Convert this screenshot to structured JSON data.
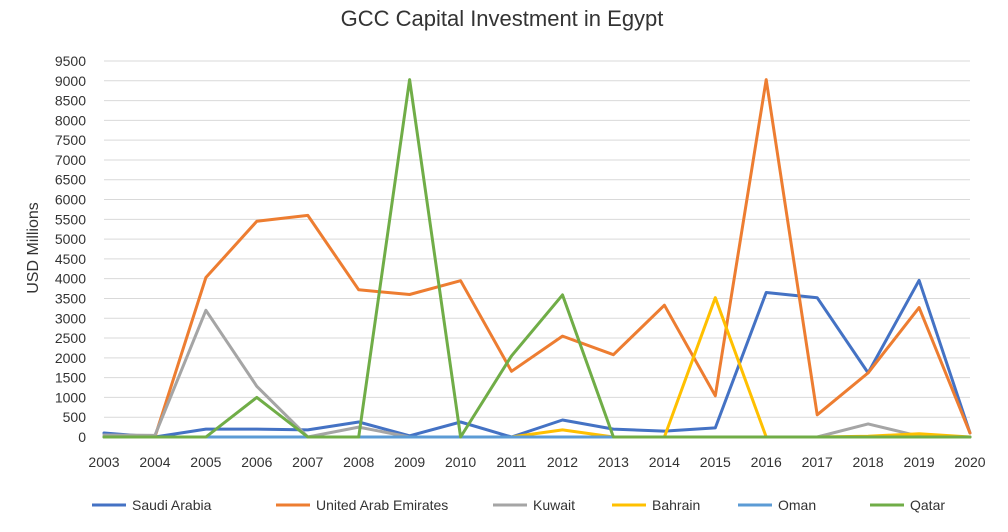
{
  "chart_data": {
    "type": "line",
    "title": "GCC Capital Investment in Egypt",
    "xlabel": "",
    "ylabel": "USD Millions",
    "ylim": [
      0,
      9500
    ],
    "ytick_step": 500,
    "grid": true,
    "legend_position": "bottom",
    "x": [
      "2003",
      "2004",
      "2005",
      "2006",
      "2007",
      "2008",
      "2009",
      "2010",
      "2011",
      "2012",
      "2013",
      "2014",
      "2015",
      "2016",
      "2017",
      "2018",
      "2019",
      "2020"
    ],
    "series": [
      {
        "name": "Saudi Arabia",
        "color": "#4472C4",
        "values": [
          100,
          0,
          200,
          200,
          180,
          380,
          30,
          380,
          0,
          430,
          200,
          150,
          230,
          3650,
          3520,
          1620,
          3960,
          100
        ]
      },
      {
        "name": "United Arab Emirates",
        "color": "#ED7D31",
        "values": [
          0,
          0,
          4030,
          5450,
          5600,
          3720,
          3600,
          3950,
          1660,
          2550,
          2080,
          3330,
          1040,
          9030,
          560,
          1620,
          3270,
          100
        ]
      },
      {
        "name": "Kuwait",
        "color": "#A5A5A5",
        "values": [
          50,
          40,
          3200,
          1280,
          0,
          250,
          0,
          0,
          0,
          0,
          0,
          0,
          0,
          0,
          0,
          330,
          20,
          0
        ]
      },
      {
        "name": "Bahrain",
        "color": "#FFC000",
        "values": [
          0,
          0,
          0,
          0,
          0,
          0,
          0,
          0,
          0,
          180,
          0,
          0,
          3520,
          0,
          0,
          20,
          80,
          0
        ]
      },
      {
        "name": "Oman",
        "color": "#5B9BD5",
        "values": [
          0,
          0,
          0,
          0,
          0,
          0,
          0,
          0,
          0,
          0,
          0,
          0,
          0,
          0,
          0,
          0,
          0,
          0
        ]
      },
      {
        "name": "Qatar",
        "color": "#70AD47",
        "values": [
          0,
          0,
          0,
          1000,
          0,
          0,
          9030,
          0,
          2050,
          3590,
          0,
          0,
          0,
          0,
          0,
          0,
          0,
          0
        ]
      }
    ]
  }
}
